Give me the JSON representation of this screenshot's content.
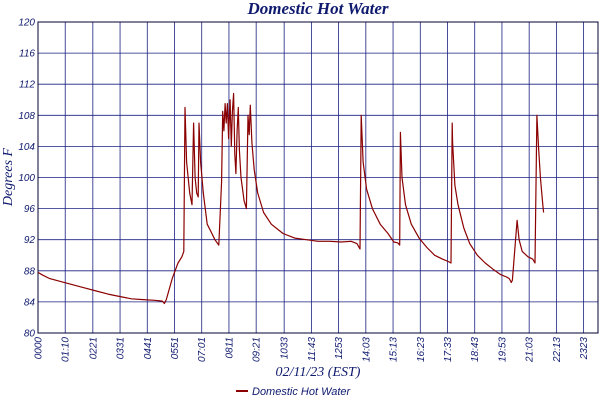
{
  "chart_data": {
    "type": "line",
    "title": "Domestic Hot Water",
    "xlabel": "02/11/23 (EST)",
    "ylabel": "Degrees F",
    "ylim": [
      80,
      120
    ],
    "yticks": [
      "80",
      "84",
      "88",
      "92",
      "96",
      "100",
      "104",
      "108",
      "112",
      "116",
      "120"
    ],
    "xlim": [
      0,
      1440
    ],
    "xticks": [
      {
        "label": "0000",
        "minutes": 0
      },
      {
        "label": "01:10",
        "minutes": 70
      },
      {
        "label": "0221",
        "minutes": 141
      },
      {
        "label": "0331",
        "minutes": 211
      },
      {
        "label": "0441",
        "minutes": 281
      },
      {
        "label": "0551",
        "minutes": 351
      },
      {
        "label": "07:01",
        "minutes": 421
      },
      {
        "label": "0811",
        "minutes": 491
      },
      {
        "label": "09:21",
        "minutes": 561
      },
      {
        "label": "1033",
        "minutes": 633
      },
      {
        "label": "11:43",
        "minutes": 703
      },
      {
        "label": "1253",
        "minutes": 773
      },
      {
        "label": "14:03",
        "minutes": 843
      },
      {
        "label": "15:13",
        "minutes": 913
      },
      {
        "label": "16:23",
        "minutes": 983
      },
      {
        "label": "17:33",
        "minutes": 1053
      },
      {
        "label": "18:43",
        "minutes": 1123
      },
      {
        "label": "19:53",
        "minutes": 1193
      },
      {
        "label": "21:03",
        "minutes": 1263
      },
      {
        "label": "22:13",
        "minutes": 1333
      },
      {
        "label": "2323",
        "minutes": 1403
      }
    ],
    "grid": true,
    "legend": "bottom-center",
    "series": [
      {
        "name": "Domestic Hot Water",
        "color": "#8b0000",
        "points": [
          [
            0,
            87.8
          ],
          [
            10,
            87.5
          ],
          [
            30,
            87.0
          ],
          [
            60,
            86.6
          ],
          [
            90,
            86.2
          ],
          [
            120,
            85.8
          ],
          [
            150,
            85.4
          ],
          [
            180,
            85.0
          ],
          [
            210,
            84.7
          ],
          [
            240,
            84.4
          ],
          [
            270,
            84.3
          ],
          [
            300,
            84.2
          ],
          [
            320,
            84.1
          ],
          [
            325,
            83.8
          ],
          [
            330,
            84.3
          ],
          [
            345,
            87.0
          ],
          [
            360,
            89.0
          ],
          [
            370,
            89.8
          ],
          [
            375,
            90.5
          ],
          [
            378,
            109.0
          ],
          [
            382,
            102.0
          ],
          [
            390,
            98.0
          ],
          [
            396,
            96.5
          ],
          [
            400,
            107.0
          ],
          [
            404,
            100.0
          ],
          [
            408,
            98.0
          ],
          [
            412,
            97.5
          ],
          [
            414,
            107.0
          ],
          [
            418,
            102.0
          ],
          [
            425,
            98.0
          ],
          [
            435,
            94.0
          ],
          [
            445,
            93.0
          ],
          [
            455,
            92.0
          ],
          [
            465,
            91.3
          ],
          [
            472,
            99.5
          ],
          [
            475,
            108.5
          ],
          [
            478,
            106.0
          ],
          [
            481,
            109.5
          ],
          [
            484,
            107.0
          ],
          [
            487,
            109.5
          ],
          [
            490,
            105.0
          ],
          [
            494,
            110.0
          ],
          [
            497,
            104.0
          ],
          [
            500,
            108.5
          ],
          [
            503,
            110.8
          ],
          [
            506,
            103.0
          ],
          [
            509,
            100.5
          ],
          [
            512,
            106.0
          ],
          [
            515,
            109.0
          ],
          [
            518,
            103.5
          ],
          [
            522,
            100.0
          ],
          [
            530,
            97.0
          ],
          [
            536,
            96.0
          ],
          [
            540,
            108.0
          ],
          [
            543,
            105.5
          ],
          [
            546,
            109.3
          ],
          [
            550,
            104.5
          ],
          [
            556,
            101.0
          ],
          [
            565,
            98.0
          ],
          [
            580,
            95.5
          ],
          [
            600,
            94.0
          ],
          [
            630,
            92.8
          ],
          [
            660,
            92.2
          ],
          [
            690,
            92.0
          ],
          [
            720,
            91.8
          ],
          [
            750,
            91.8
          ],
          [
            780,
            91.7
          ],
          [
            805,
            91.8
          ],
          [
            820,
            91.5
          ],
          [
            828,
            90.8
          ],
          [
            831,
            108.0
          ],
          [
            836,
            102.0
          ],
          [
            845,
            98.5
          ],
          [
            860,
            96.0
          ],
          [
            880,
            94.0
          ],
          [
            900,
            92.8
          ],
          [
            915,
            91.7
          ],
          [
            925,
            91.6
          ],
          [
            930,
            91.3
          ],
          [
            932,
            105.8
          ],
          [
            936,
            100.0
          ],
          [
            945,
            96.5
          ],
          [
            960,
            94.0
          ],
          [
            980,
            92.2
          ],
          [
            1000,
            91.0
          ],
          [
            1020,
            90.0
          ],
          [
            1040,
            89.5
          ],
          [
            1055,
            89.2
          ],
          [
            1062,
            89.0
          ],
          [
            1065,
            107.0
          ],
          [
            1066,
            104.5
          ],
          [
            1072,
            99.0
          ],
          [
            1080,
            96.5
          ],
          [
            1095,
            93.5
          ],
          [
            1110,
            91.5
          ],
          [
            1130,
            90.0
          ],
          [
            1150,
            89.0
          ],
          [
            1170,
            88.2
          ],
          [
            1190,
            87.5
          ],
          [
            1205,
            87.2
          ],
          [
            1212,
            87.0
          ],
          [
            1217,
            86.5
          ],
          [
            1220,
            86.8
          ],
          [
            1232,
            94.5
          ],
          [
            1237,
            92.0
          ],
          [
            1245,
            90.5
          ],
          [
            1260,
            89.8
          ],
          [
            1272,
            89.5
          ],
          [
            1278,
            89.0
          ],
          [
            1283,
            108.0
          ],
          [
            1287,
            104.0
          ],
          [
            1292,
            100.0
          ],
          [
            1298,
            96.5
          ],
          [
            1300,
            95.5
          ]
        ]
      }
    ]
  }
}
